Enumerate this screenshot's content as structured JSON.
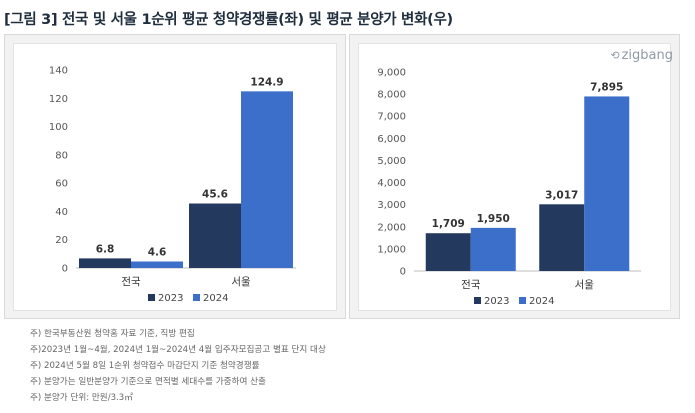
{
  "title": "[그림 3] 전국 및 서울 1순위 평균 청약경쟁률(좌) 및 평균 분양가 변화(우)",
  "logo": {
    "text": "zigbang",
    "icon": "zigbang-logo-icon"
  },
  "colors": {
    "series2023": "#233a5e",
    "series2024": "#3b6fc9"
  },
  "chart_data": [
    {
      "type": "bar",
      "categories": [
        "전국",
        "서울"
      ],
      "series": [
        {
          "name": "2023",
          "values": [
            6.8,
            45.6
          ],
          "labels": [
            "6.8",
            "45.6"
          ]
        },
        {
          "name": "2024",
          "values": [
            4.6,
            124.9
          ],
          "labels": [
            "4.6",
            "124.9"
          ]
        }
      ],
      "ylim": [
        0,
        140
      ],
      "yticks": [
        "0",
        "20",
        "40",
        "60",
        "80",
        "100",
        "120",
        "140"
      ],
      "title": "",
      "xlabel": "",
      "ylabel": "",
      "grid": false,
      "legend": "bottom"
    },
    {
      "type": "bar",
      "categories": [
        "전국",
        "서울"
      ],
      "series": [
        {
          "name": "2023",
          "values": [
            1709,
            3017
          ],
          "labels": [
            "1,709",
            "3,017"
          ]
        },
        {
          "name": "2024",
          "values": [
            1950,
            7895
          ],
          "labels": [
            "1,950",
            "7,895"
          ]
        }
      ],
      "ylim": [
        0,
        9000
      ],
      "yticks": [
        "0",
        "1,000",
        "2,000",
        "3,000",
        "4,000",
        "5,000",
        "6,000",
        "7,000",
        "8,000",
        "9,000"
      ],
      "title": "",
      "xlabel": "",
      "ylabel": "",
      "grid": false,
      "legend": "bottom"
    }
  ],
  "notes": [
    "주) 한국부동산원 청약홈 자료 기준, 직방 편집",
    "주)2023년 1월~4월, 2024년 1월~2024년 4월 입주자모집공고 별표 단지 대상",
    "주) 2024년 5월 8일 1순위 청약접수 마감단지 기준 청약경쟁률",
    "주) 분양가는 일반분양가 기준으로 면적별 세대수를 가중하여 산출",
    "주) 분양가 단위: 만원/3.3㎡"
  ]
}
